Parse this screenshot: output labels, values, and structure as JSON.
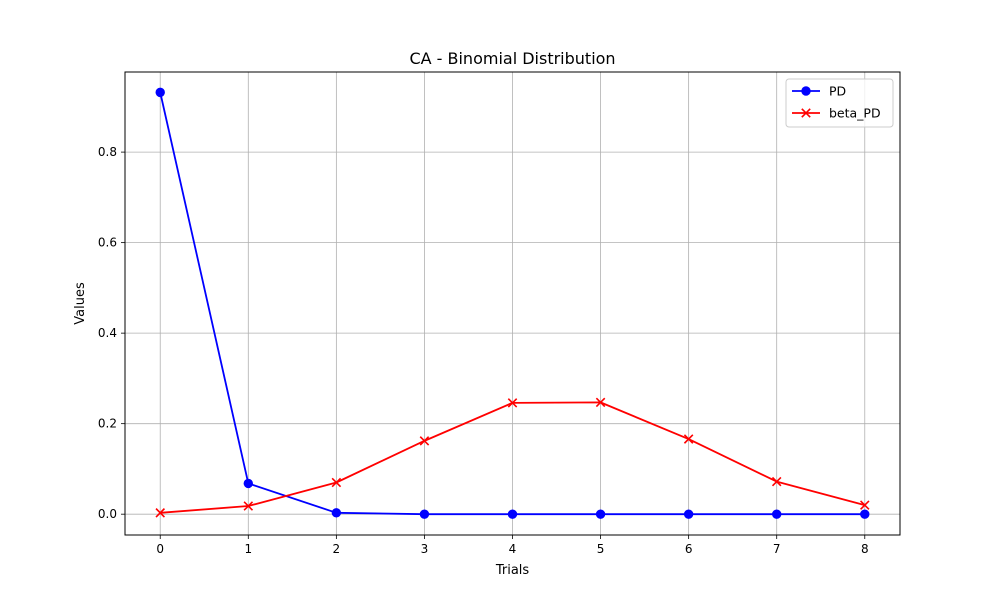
{
  "chart_data": {
    "type": "line",
    "title": "CA - Binomial Distribution",
    "xlabel": "Trials",
    "ylabel": "Values",
    "x": [
      0,
      1,
      2,
      3,
      4,
      5,
      6,
      7,
      8
    ],
    "xlim": [
      -0.4,
      8.4
    ],
    "ylim": [
      -0.046,
      0.977
    ],
    "xticks": [
      0,
      1,
      2,
      3,
      4,
      5,
      6,
      7,
      8
    ],
    "yticks": [
      0.0,
      0.2,
      0.4,
      0.6,
      0.8
    ],
    "ytick_labels": [
      "0.0",
      "0.2",
      "0.4",
      "0.6",
      "0.8"
    ],
    "grid": true,
    "legend_position": "top-right",
    "series": [
      {
        "name": "PD",
        "color": "#0000ff",
        "marker": "circle",
        "values": [
          0.932,
          0.068,
          0.003,
          0.0,
          0.0,
          0.0,
          0.0,
          0.0,
          0.0
        ]
      },
      {
        "name": "beta_PD",
        "color": "#ff0000",
        "marker": "x",
        "values": [
          0.003,
          0.018,
          0.07,
          0.162,
          0.246,
          0.247,
          0.166,
          0.072,
          0.02
        ]
      }
    ]
  }
}
